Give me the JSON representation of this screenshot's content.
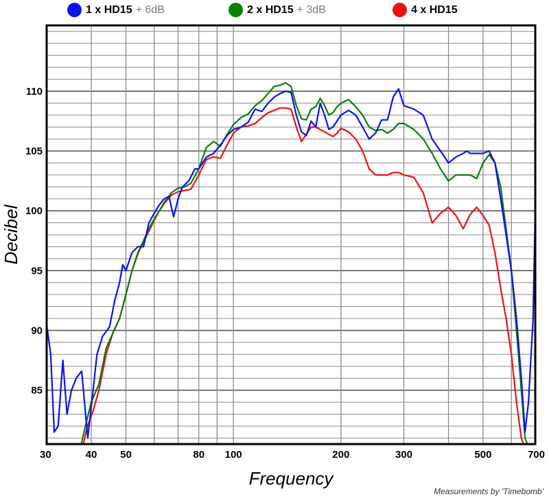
{
  "legend": [
    {
      "name": "1 x HD15",
      "extra": "+ 6dB",
      "color": "#0a14e8"
    },
    {
      "name": "2 x HD15",
      "extra": "+ 3dB",
      "color": "#0a7d0a"
    },
    {
      "name": "4 x HD15",
      "extra": "",
      "color": "#ee1111"
    }
  ],
  "credit": "Measurements by 'Timebomb'",
  "chart_data": {
    "type": "line",
    "title": "",
    "xlabel": "Frequency",
    "ylabel": "Decibel",
    "xscale": "log",
    "xlim": [
      30,
      700
    ],
    "ylim": [
      80.5,
      115.5
    ],
    "grid": true,
    "legend_position": "top",
    "x_ticks": [
      30,
      40,
      50,
      80,
      100,
      200,
      300,
      500,
      700
    ],
    "x_tick_labels": [
      "30",
      "40",
      "50",
      "80",
      "100",
      "200",
      "300",
      "500",
      "700"
    ],
    "y_ticks": [
      85,
      90,
      95,
      100,
      105,
      110
    ],
    "y_tick_labels": [
      "85",
      "90",
      "95",
      "100",
      "105",
      "110"
    ],
    "series": [
      {
        "name": "1 x HD15",
        "color": "#0a14e8",
        "points": [
          [
            30,
            90.5
          ],
          [
            30.8,
            88
          ],
          [
            31.5,
            81.5
          ],
          [
            32.3,
            82
          ],
          [
            33.3,
            87.5
          ],
          [
            34.2,
            83
          ],
          [
            35.2,
            85
          ],
          [
            36.3,
            86
          ],
          [
            37.6,
            86.6
          ],
          [
            39.1,
            81
          ],
          [
            40.3,
            84.5
          ],
          [
            41.5,
            88
          ],
          [
            43,
            89.5
          ],
          [
            45,
            90.3
          ],
          [
            46.5,
            92.5
          ],
          [
            48,
            94
          ],
          [
            49,
            95.5
          ],
          [
            50,
            95
          ],
          [
            52,
            96.5
          ],
          [
            54,
            97
          ],
          [
            56,
            97
          ],
          [
            58,
            99
          ],
          [
            60,
            99.8
          ],
          [
            62,
            100.5
          ],
          [
            64,
            101
          ],
          [
            66,
            101.2
          ],
          [
            68,
            99.5
          ],
          [
            70,
            101
          ],
          [
            72,
            102
          ],
          [
            75,
            102.5
          ],
          [
            78,
            103.5
          ],
          [
            80,
            103.5
          ],
          [
            84,
            104.5
          ],
          [
            88,
            104.8
          ],
          [
            92,
            105.5
          ],
          [
            96,
            106.3
          ],
          [
            100,
            106.8
          ],
          [
            105,
            107
          ],
          [
            110,
            107.4
          ],
          [
            115,
            108.5
          ],
          [
            120,
            108.3
          ],
          [
            125,
            109
          ],
          [
            130,
            109.5
          ],
          [
            135,
            109.8
          ],
          [
            140,
            110
          ],
          [
            145,
            109.9
          ],
          [
            150,
            108
          ],
          [
            155,
            106.6
          ],
          [
            160,
            106.3
          ],
          [
            165,
            107.5
          ],
          [
            170,
            107
          ],
          [
            175,
            109
          ],
          [
            180,
            108
          ],
          [
            185,
            106.8
          ],
          [
            190,
            107
          ],
          [
            195,
            107.5
          ],
          [
            200,
            108
          ],
          [
            210,
            108.4
          ],
          [
            220,
            108
          ],
          [
            230,
            107
          ],
          [
            240,
            106
          ],
          [
            250,
            106.5
          ],
          [
            260,
            107.6
          ],
          [
            270,
            107.6
          ],
          [
            280,
            109.5
          ],
          [
            290,
            110.2
          ],
          [
            300,
            108.8
          ],
          [
            320,
            108.5
          ],
          [
            340,
            108
          ],
          [
            360,
            106
          ],
          [
            380,
            105
          ],
          [
            400,
            104
          ],
          [
            420,
            104.5
          ],
          [
            440,
            104.8
          ],
          [
            450,
            105
          ],
          [
            460,
            104.8
          ],
          [
            480,
            104.8
          ],
          [
            500,
            104.8
          ],
          [
            520,
            105
          ],
          [
            540,
            104
          ],
          [
            560,
            101
          ],
          [
            580,
            98
          ],
          [
            600,
            95
          ],
          [
            620,
            91
          ],
          [
            640,
            86
          ],
          [
            655,
            81.5
          ],
          [
            670,
            84
          ],
          [
            680,
            87.5
          ],
          [
            690,
            90.8
          ],
          [
            700,
            100
          ]
        ]
      },
      {
        "name": "2 x HD15",
        "color": "#0a7d0a",
        "points": [
          [
            37.5,
            80.5
          ],
          [
            38.5,
            82
          ],
          [
            40,
            84
          ],
          [
            42,
            85.5
          ],
          [
            44,
            88.5
          ],
          [
            46,
            89.8
          ],
          [
            48,
            91
          ],
          [
            50,
            93
          ],
          [
            52,
            95
          ],
          [
            54,
            96.5
          ],
          [
            56,
            97.5
          ],
          [
            58,
            98.5
          ],
          [
            60,
            99.3
          ],
          [
            62,
            100
          ],
          [
            64,
            100.7
          ],
          [
            67,
            101.5
          ],
          [
            70,
            101.9
          ],
          [
            73,
            102
          ],
          [
            76,
            102.3
          ],
          [
            80,
            103.5
          ],
          [
            84,
            105.3
          ],
          [
            88,
            105.8
          ],
          [
            92,
            105.4
          ],
          [
            96,
            106.4
          ],
          [
            100,
            107.2
          ],
          [
            105,
            107.8
          ],
          [
            110,
            108.1
          ],
          [
            115,
            108.8
          ],
          [
            120,
            109.2
          ],
          [
            125,
            109.8
          ],
          [
            130,
            110.4
          ],
          [
            135,
            110.5
          ],
          [
            140,
            110.7
          ],
          [
            145,
            110.4
          ],
          [
            150,
            108.8
          ],
          [
            155,
            107.7
          ],
          [
            160,
            107.6
          ],
          [
            165,
            108.5
          ],
          [
            170,
            108.7
          ],
          [
            175,
            109.4
          ],
          [
            180,
            108.8
          ],
          [
            185,
            108
          ],
          [
            190,
            108.2
          ],
          [
            195,
            108.7
          ],
          [
            200,
            109
          ],
          [
            210,
            109.3
          ],
          [
            220,
            108.7
          ],
          [
            230,
            108
          ],
          [
            240,
            107
          ],
          [
            250,
            106.7
          ],
          [
            260,
            106.8
          ],
          [
            270,
            106.5
          ],
          [
            280,
            106.8
          ],
          [
            290,
            107.3
          ],
          [
            300,
            107.3
          ],
          [
            320,
            106.8
          ],
          [
            340,
            106
          ],
          [
            360,
            104.8
          ],
          [
            380,
            103.5
          ],
          [
            400,
            102.5
          ],
          [
            420,
            103
          ],
          [
            440,
            103
          ],
          [
            460,
            103
          ],
          [
            480,
            102.7
          ],
          [
            500,
            104
          ],
          [
            520,
            104.7
          ],
          [
            540,
            104
          ],
          [
            560,
            102
          ],
          [
            580,
            98.5
          ],
          [
            600,
            95
          ],
          [
            620,
            90
          ],
          [
            640,
            85
          ],
          [
            655,
            81
          ],
          [
            665,
            80.5
          ]
        ]
      },
      {
        "name": "4 x HD15",
        "color": "#ee1111",
        "points": [
          [
            38,
            80.5
          ],
          [
            39,
            82
          ],
          [
            40.5,
            83.3
          ],
          [
            42,
            85
          ],
          [
            44,
            88
          ],
          [
            46,
            89.8
          ],
          [
            48,
            91
          ],
          [
            50,
            93
          ],
          [
            52,
            95
          ],
          [
            54,
            96.4
          ],
          [
            56,
            97.4
          ],
          [
            58,
            98.3
          ],
          [
            60,
            99.2
          ],
          [
            62,
            100
          ],
          [
            64,
            100.6
          ],
          [
            67,
            101.3
          ],
          [
            70,
            101.6
          ],
          [
            73,
            101.7
          ],
          [
            76,
            101.8
          ],
          [
            80,
            103
          ],
          [
            84,
            104.3
          ],
          [
            88,
            104.5
          ],
          [
            92,
            104.4
          ],
          [
            96,
            105.5
          ],
          [
            100,
            106.5
          ],
          [
            105,
            107
          ],
          [
            110,
            107.1
          ],
          [
            115,
            107.3
          ],
          [
            120,
            107.8
          ],
          [
            125,
            108.2
          ],
          [
            130,
            108.4
          ],
          [
            135,
            108.6
          ],
          [
            140,
            108.6
          ],
          [
            145,
            108.5
          ],
          [
            150,
            107
          ],
          [
            155,
            105.8
          ],
          [
            160,
            106.4
          ],
          [
            165,
            107
          ],
          [
            170,
            107
          ],
          [
            175,
            106.8
          ],
          [
            180,
            106.6
          ],
          [
            185,
            106.4
          ],
          [
            190,
            106.2
          ],
          [
            195,
            106.5
          ],
          [
            200,
            106.9
          ],
          [
            210,
            106.6
          ],
          [
            220,
            106
          ],
          [
            230,
            105
          ],
          [
            240,
            103.5
          ],
          [
            250,
            103
          ],
          [
            260,
            103
          ],
          [
            270,
            103
          ],
          [
            280,
            103.2
          ],
          [
            290,
            103.2
          ],
          [
            300,
            103
          ],
          [
            320,
            102.8
          ],
          [
            340,
            101.5
          ],
          [
            360,
            99
          ],
          [
            380,
            99.8
          ],
          [
            400,
            100.3
          ],
          [
            420,
            99.6
          ],
          [
            440,
            98.5
          ],
          [
            460,
            99.7
          ],
          [
            480,
            100.3
          ],
          [
            500,
            99.6
          ],
          [
            520,
            98.8
          ],
          [
            540,
            96.5
          ],
          [
            560,
            93.5
          ],
          [
            580,
            91
          ],
          [
            600,
            88
          ],
          [
            620,
            84
          ],
          [
            640,
            81
          ],
          [
            650,
            80.5
          ]
        ]
      }
    ]
  }
}
